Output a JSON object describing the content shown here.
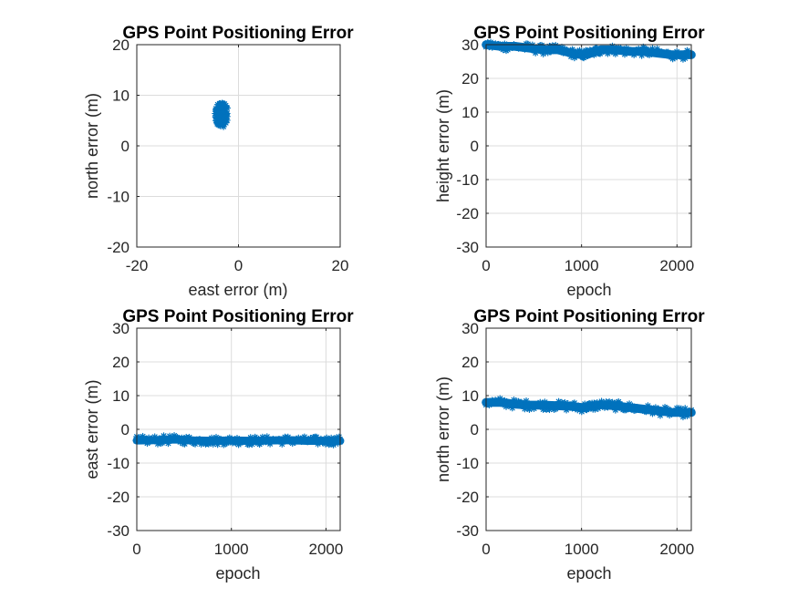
{
  "figure": {
    "background": "#ffffff",
    "series_color": "#0072BD",
    "marker": "asterisk"
  },
  "chart_data": [
    {
      "type": "scatter",
      "title": "GPS Point Positioning Error",
      "xlabel": "east error (m)",
      "ylabel": "north error (m)",
      "xlim": [
        -20,
        20
      ],
      "ylim": [
        -20,
        20
      ],
      "xticks": [
        -20,
        0,
        20
      ],
      "yticks": [
        -20,
        -10,
        0,
        10,
        20
      ],
      "grid": true,
      "series": [
        {
          "cluster_center": [
            -3.3,
            6.2
          ],
          "x_range": [
            -4.6,
            -2.0
          ],
          "y_range": [
            3.7,
            8.7
          ]
        }
      ]
    },
    {
      "type": "line",
      "title": "GPS Point Positioning Error",
      "xlabel": "epoch",
      "ylabel": "height error (m)",
      "xlim": [
        0,
        2150
      ],
      "ylim": [
        -30,
        30
      ],
      "xticks": [
        0,
        1000,
        2000
      ],
      "yticks": [
        -30,
        -20,
        -10,
        0,
        10,
        20,
        30
      ],
      "grid": true,
      "series": [
        {
          "x": [
            0,
            150,
            300,
            450,
            600,
            750,
            900,
            1000,
            1100,
            1200,
            1350,
            1500,
            1650,
            1800,
            1950,
            2150
          ],
          "y": [
            30,
            29.5,
            29.5,
            29,
            28.5,
            28.5,
            27.5,
            27,
            27.5,
            28.5,
            28.5,
            28,
            28,
            27.5,
            27,
            27
          ],
          "spread": 1.3
        }
      ]
    },
    {
      "type": "line",
      "title": "GPS Point Positioning Error",
      "xlabel": "epoch",
      "ylabel": "east error (m)",
      "xlim": [
        0,
        2150
      ],
      "ylim": [
        -30,
        30
      ],
      "xticks": [
        0,
        1000,
        2000
      ],
      "yticks": [
        -30,
        -20,
        -10,
        0,
        10,
        20,
        30
      ],
      "grid": true,
      "series": [
        {
          "x": [
            0,
            200,
            400,
            600,
            800,
            1000,
            1200,
            1400,
            1600,
            1800,
            2000,
            2150
          ],
          "y": [
            -3.3,
            -3.2,
            -3,
            -3.3,
            -3.4,
            -3.3,
            -3.4,
            -3.3,
            -3.2,
            -3.4,
            -3.4,
            -3.4
          ],
          "spread": 1.2
        }
      ]
    },
    {
      "type": "line",
      "title": "GPS Point Positioning Error",
      "xlabel": "epoch",
      "ylabel": "north error (m)",
      "xlim": [
        0,
        2150
      ],
      "ylim": [
        -30,
        30
      ],
      "xticks": [
        0,
        1000,
        2000
      ],
      "yticks": [
        -30,
        -20,
        -10,
        0,
        10,
        20,
        30
      ],
      "grid": true,
      "series": [
        {
          "x": [
            0,
            150,
            300,
            450,
            600,
            750,
            900,
            1000,
            1100,
            1200,
            1350,
            1500,
            1650,
            1800,
            1950,
            2150
          ],
          "y": [
            8,
            8,
            7.5,
            7.2,
            7.2,
            7,
            6.8,
            6.5,
            6.8,
            7.3,
            7,
            6.5,
            6,
            5.5,
            5,
            5
          ],
          "spread": 1.3
        }
      ]
    }
  ]
}
